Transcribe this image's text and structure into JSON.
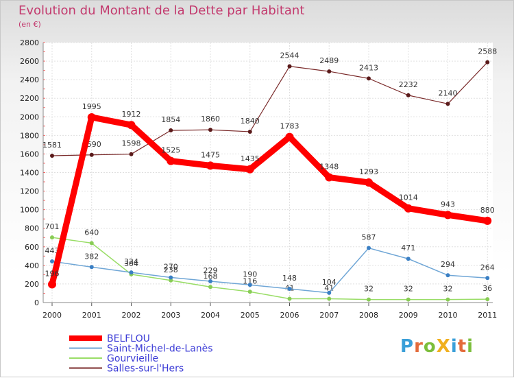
{
  "header": {
    "title": "Evolution du Montant de la Dette par Habitant",
    "subtitle": "(en €)"
  },
  "logo": {
    "text": "ProXiti",
    "letters": [
      "P",
      "r",
      "o",
      "X",
      "i",
      "t",
      "i"
    ]
  },
  "chart_data": {
    "type": "line",
    "title": "Evolution du Montant de la Dette par Habitant",
    "subtitle": "(en €)",
    "x": [
      "2000",
      "2001",
      "2002",
      "2003",
      "2004",
      "2005",
      "2006",
      "2007",
      "2008",
      "2009",
      "2010",
      "2011"
    ],
    "ylim": [
      0,
      2800
    ],
    "yticks": [
      0,
      200,
      400,
      600,
      800,
      1000,
      1200,
      1400,
      1600,
      1800,
      2000,
      2200,
      2400,
      2600,
      2800
    ],
    "grid": true,
    "legend_position": "bottom-left",
    "series": [
      {
        "name": "Salles-sur-l'Hers",
        "color": "#7a2a2a",
        "width": 1.2,
        "values": [
          1581,
          1590,
          1598,
          1854,
          1860,
          1840,
          2544,
          2489,
          2413,
          2232,
          2140,
          2588
        ]
      },
      {
        "name": "Gourvieille",
        "color": "#99dd66",
        "width": 1.5,
        "values": [
          701,
          640,
          304,
          238,
          168,
          116,
          41,
          41,
          32,
          32,
          32,
          36
        ]
      },
      {
        "name": "Saint-Michel-de-Lanès",
        "color": "#6fa6d6",
        "width": 1.5,
        "values": [
          443,
          382,
          324,
          270,
          229,
          190,
          148,
          104,
          587,
          471,
          294,
          264
        ]
      },
      {
        "name": "BELFLOU",
        "color": "#ff0000",
        "width": 9,
        "values": [
          196,
          1995,
          1912,
          1525,
          1475,
          1435,
          1783,
          1348,
          1293,
          1014,
          943,
          880
        ]
      }
    ],
    "legend_order": [
      "BELFLOU",
      "Saint-Michel-de-Lanès",
      "Gourvieille",
      "Salles-sur-l'Hers"
    ]
  }
}
